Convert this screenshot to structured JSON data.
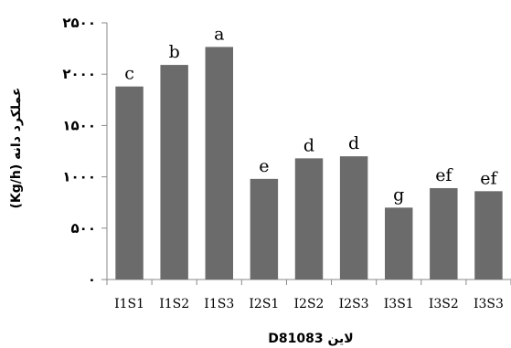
{
  "chart_data": {
    "type": "bar",
    "categories": [
      "I1S1",
      "I1S2",
      "I1S3",
      "I2S1",
      "I2S2",
      "I2S3",
      "I3S1",
      "I3S2",
      "I3S3"
    ],
    "values": [
      1880,
      2090,
      2265,
      980,
      1180,
      1200,
      700,
      890,
      860
    ],
    "bar_labels": [
      "c",
      "b",
      "a",
      "e",
      "d",
      "d",
      "g",
      "ef",
      "ef"
    ],
    "ylim": [
      0,
      2500
    ],
    "yticks": [
      0,
      500,
      1000,
      1500,
      2000,
      2500
    ],
    "ytick_labels": [
      "۰",
      "۵۰۰",
      "۱۰۰۰",
      "۱۵۰۰",
      "۲۰۰۰",
      "۲۵۰۰"
    ],
    "xlabel": "لاین D81083",
    "ylabel": "عملکرد دانه (Kg/h)",
    "bar_color": "#6b6b6b",
    "grid": false,
    "legend": "none"
  }
}
